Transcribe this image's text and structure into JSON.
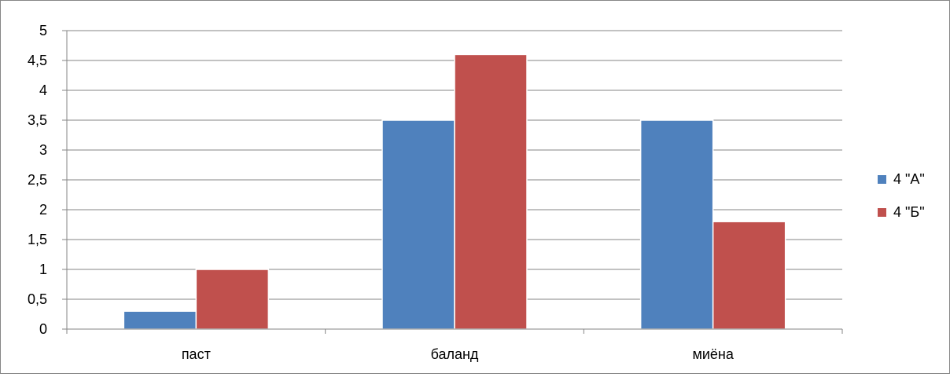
{
  "chart_data": {
    "type": "bar",
    "categories": [
      "паст",
      "баланд",
      "миёна"
    ],
    "series": [
      {
        "name": "4 \"А\"",
        "values": [
          0.3,
          3.5,
          3.5
        ]
      },
      {
        "name": "4 \"Б\"",
        "values": [
          1,
          4.6,
          1.8
        ]
      }
    ],
    "ylim": [
      0,
      5
    ],
    "y_ticks": [
      "0",
      "0,5",
      "1",
      "1,5",
      "2",
      "2,5",
      "3",
      "3,5",
      "4",
      "4,5",
      "5"
    ],
    "grid": true,
    "legend": "right",
    "colors": [
      "#4f81bd",
      "#c0504d"
    ],
    "gridline_color": "#868686",
    "axis_color": "#868686"
  }
}
